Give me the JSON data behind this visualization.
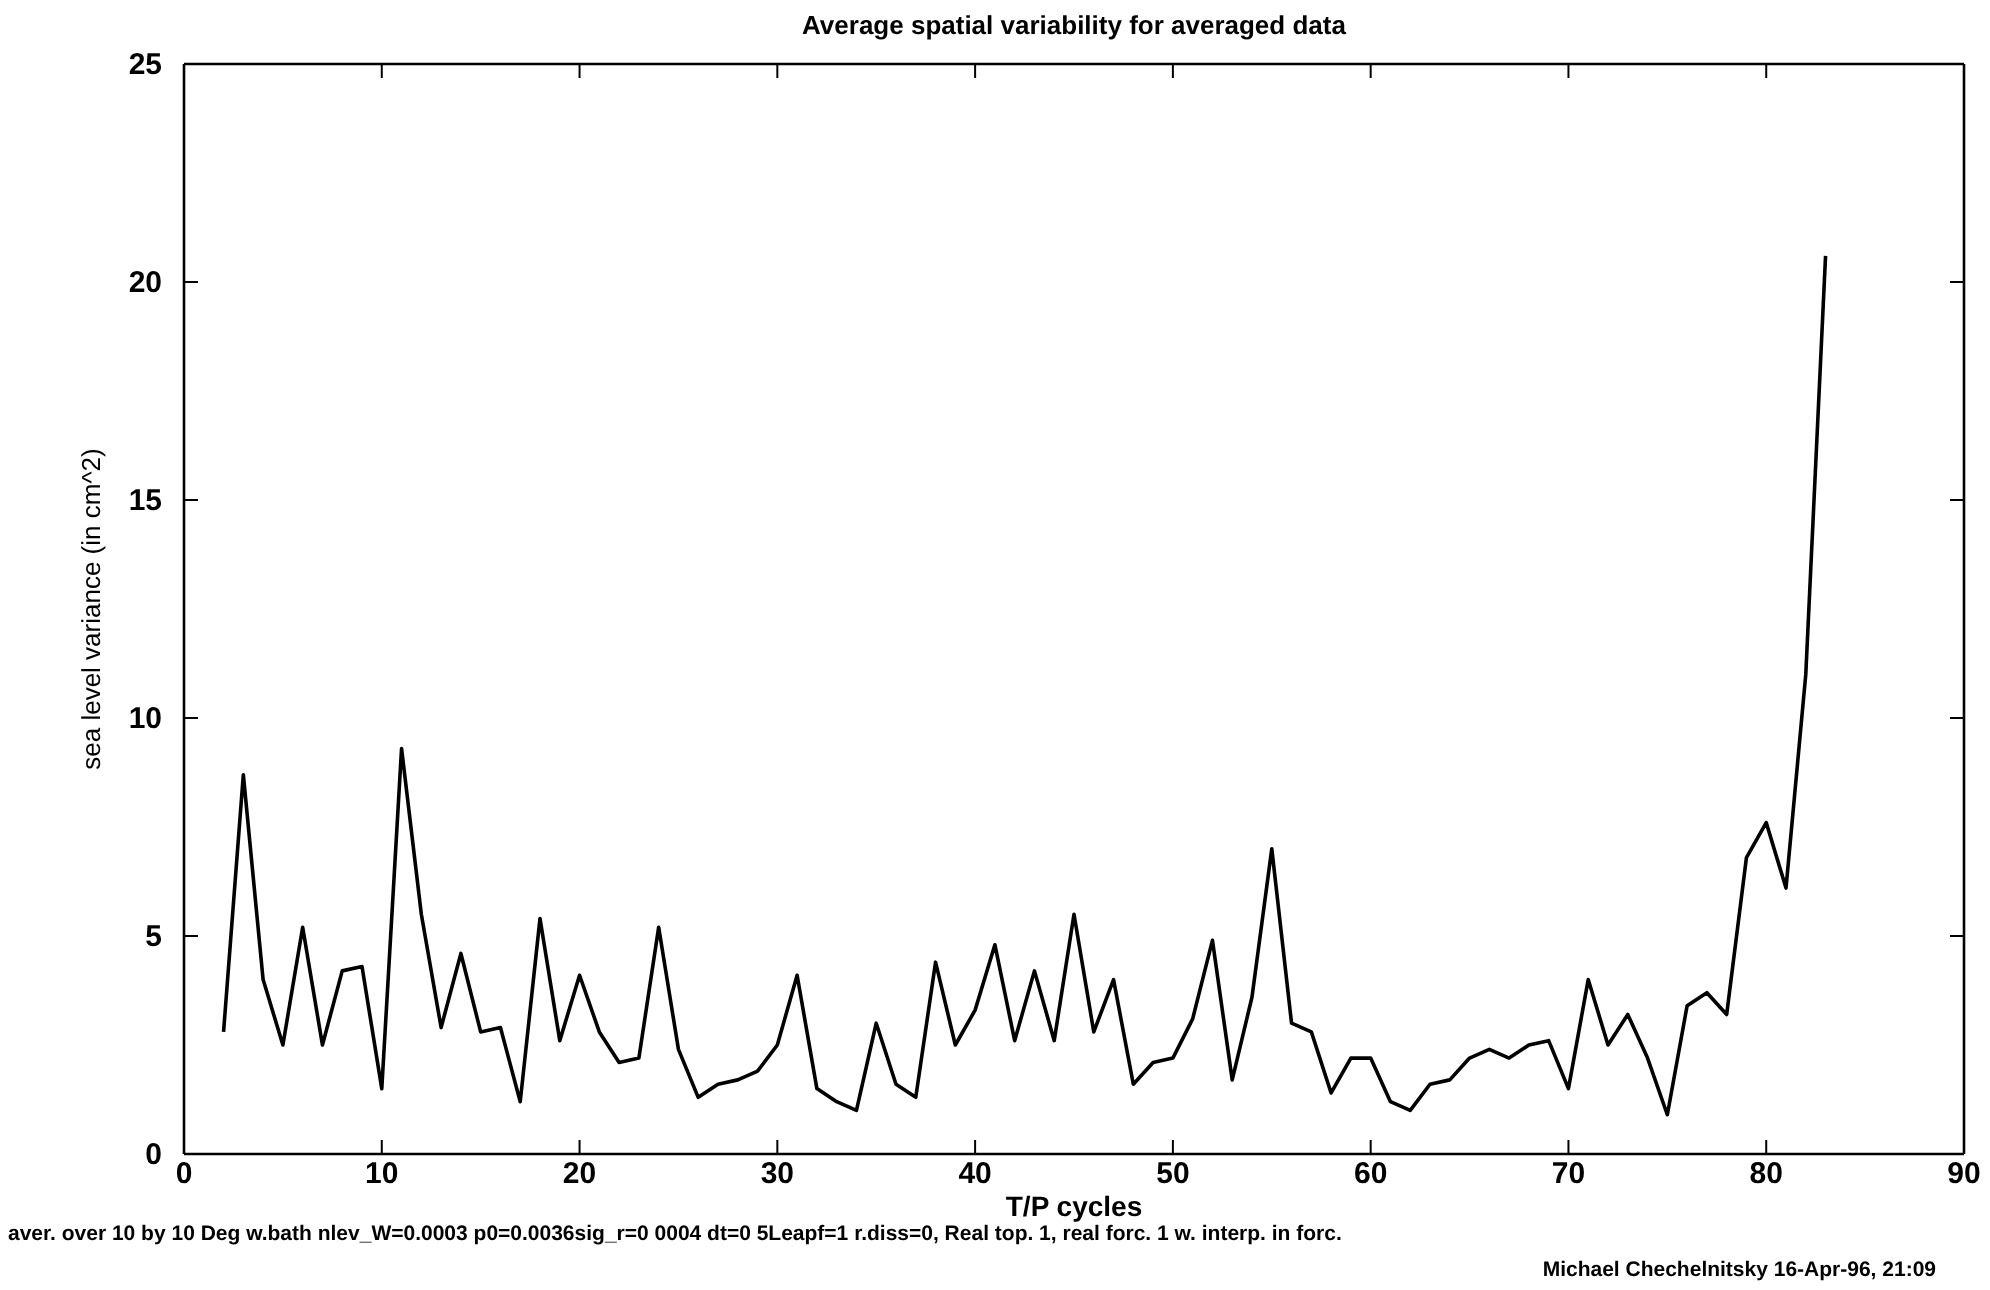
{
  "chart_data": {
    "type": "line",
    "title": "Average spatial variability for averaged data",
    "xlabel": "T/P cycles",
    "ylabel": "sea level variance (in cm^2)",
    "annotations": [
      "aver. over 10 by 10 Deg w.bath  nlev_W=0.0003 p0=0.0036sig_r=0 0004 dt=0 5Leapf=1 r.diss=0, Real top. 1, real forc. 1 w. interp. in forc.",
      "Michael Chechelnitsky  16-Apr-96, 21:09"
    ],
    "x": [
      2,
      3,
      4,
      5,
      6,
      7,
      8,
      9,
      10,
      11,
      12,
      13,
      14,
      15,
      16,
      17,
      18,
      19,
      20,
      21,
      22,
      23,
      24,
      25,
      26,
      27,
      28,
      29,
      30,
      31,
      32,
      33,
      34,
      35,
      36,
      37,
      38,
      39,
      40,
      41,
      42,
      43,
      44,
      45,
      46,
      47,
      48,
      49,
      50,
      51,
      52,
      53,
      54,
      55,
      56,
      57,
      58,
      59,
      60,
      61,
      62,
      63,
      64,
      65,
      66,
      67,
      68,
      69,
      70,
      71,
      72,
      73,
      74,
      75,
      76,
      77,
      78,
      79,
      80,
      81,
      82,
      83
    ],
    "series": [
      {
        "color": "#000000",
        "values": [
          2.8,
          8.7,
          4.0,
          2.5,
          5.2,
          2.5,
          4.2,
          4.3,
          1.5,
          9.3,
          5.5,
          2.9,
          4.6,
          2.8,
          2.9,
          1.2,
          5.4,
          2.6,
          4.1,
          2.8,
          2.1,
          2.2,
          5.2,
          2.4,
          1.3,
          1.6,
          1.7,
          1.9,
          2.5,
          4.1,
          1.5,
          1.2,
          1.0,
          3.0,
          1.6,
          1.3,
          4.4,
          2.5,
          3.3,
          4.8,
          2.6,
          4.2,
          2.6,
          5.5,
          2.8,
          4.0,
          1.6,
          2.1,
          2.2,
          3.1,
          4.9,
          1.7,
          3.6,
          7.0,
          3.0,
          2.8,
          1.4,
          2.2,
          2.2,
          1.2,
          1.0,
          1.6,
          1.7,
          2.2,
          2.4,
          2.2,
          2.5,
          2.6,
          1.5,
          4.0,
          2.5,
          3.2,
          2.2,
          0.9,
          3.4,
          3.7,
          3.2,
          6.8,
          7.6,
          6.1,
          11.0,
          20.6
        ]
      }
    ],
    "xlim": [
      0,
      90
    ],
    "xticks": [
      0,
      10,
      20,
      30,
      40,
      50,
      60,
      70,
      80,
      90
    ],
    "ylim": [
      0,
      25
    ],
    "yticks": [
      0,
      5,
      10,
      15,
      20,
      25
    ],
    "grid": false,
    "marker": "none",
    "line_style": "solid"
  }
}
